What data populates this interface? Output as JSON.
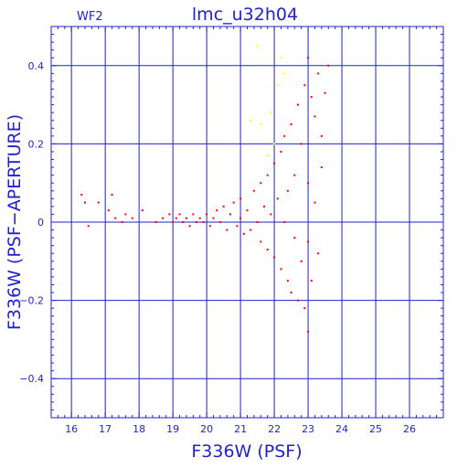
{
  "chart_data": {
    "type": "scatter",
    "title": "lmc_u32h04",
    "chip": "WF2",
    "xlabel": "F336W (PSF)",
    "ylabel": "F336W (PSF−APERTURE)",
    "xlim": [
      15.4,
      27.0
    ],
    "ylim": [
      -0.5,
      0.5
    ],
    "x_major_ticks": [
      16,
      17,
      18,
      19,
      20,
      21,
      22,
      23,
      24,
      25,
      26
    ],
    "x_tick_labels": [
      "16",
      "17",
      "18",
      "19",
      "20",
      "21",
      "22",
      "23",
      "24",
      "25",
      "26"
    ],
    "y_major_ticks": [
      -0.4,
      -0.2,
      0,
      0.2,
      0.4
    ],
    "y_tick_labels": [
      "−0.4",
      "−0.2",
      "0",
      "0.2",
      "0.4"
    ],
    "grid": true,
    "frame_color": "#2222cc",
    "series": [
      {
        "color": "#ff0000",
        "description": "approximate representative sample of the dense cloud",
        "points": [
          [
            16.3,
            0.07
          ],
          [
            16.4,
            0.05
          ],
          [
            16.5,
            -0.01
          ],
          [
            16.8,
            0.05
          ],
          [
            17.1,
            0.03
          ],
          [
            17.2,
            0.07
          ],
          [
            17.3,
            0.01
          ],
          [
            17.5,
            0.0
          ],
          [
            17.6,
            0.02
          ],
          [
            17.8,
            0.01
          ],
          [
            18.1,
            0.03
          ],
          [
            18.5,
            0.0
          ],
          [
            18.7,
            0.01
          ],
          [
            18.9,
            0.02
          ],
          [
            19.0,
            0.0
          ],
          [
            19.1,
            0.01
          ],
          [
            19.2,
            0.02
          ],
          [
            19.3,
            0.0
          ],
          [
            19.4,
            0.01
          ],
          [
            19.5,
            -0.01
          ],
          [
            19.6,
            0.02
          ],
          [
            19.7,
            0.0
          ],
          [
            19.8,
            0.01
          ],
          [
            19.9,
            0.0
          ],
          [
            20.0,
            0.02
          ],
          [
            20.1,
            -0.01
          ],
          [
            20.2,
            0.01
          ],
          [
            20.3,
            0.03
          ],
          [
            20.4,
            0.0
          ],
          [
            20.5,
            0.04
          ],
          [
            20.6,
            -0.02
          ],
          [
            20.7,
            0.02
          ],
          [
            20.8,
            0.05
          ],
          [
            20.9,
            -0.01
          ],
          [
            21.0,
            0.01
          ],
          [
            21.0,
            0.06
          ],
          [
            21.1,
            -0.03
          ],
          [
            21.2,
            0.03
          ],
          [
            21.3,
            -0.02
          ],
          [
            21.4,
            0.08
          ],
          [
            21.5,
            0.0
          ],
          [
            21.6,
            0.1
          ],
          [
            21.6,
            -0.05
          ],
          [
            21.7,
            0.04
          ],
          [
            21.8,
            -0.07
          ],
          [
            21.8,
            0.12
          ],
          [
            21.9,
            0.02
          ],
          [
            22.0,
            -0.09
          ],
          [
            22.0,
            0.15
          ],
          [
            22.1,
            0.06
          ],
          [
            22.2,
            -0.12
          ],
          [
            22.2,
            0.18
          ],
          [
            22.3,
            0.0
          ],
          [
            22.3,
            0.22
          ],
          [
            22.4,
            -0.15
          ],
          [
            22.4,
            0.08
          ],
          [
            22.5,
            0.25
          ],
          [
            22.5,
            -0.18
          ],
          [
            22.6,
            0.12
          ],
          [
            22.6,
            -0.04
          ],
          [
            22.7,
            0.3
          ],
          [
            22.7,
            -0.2
          ],
          [
            22.8,
            0.2
          ],
          [
            22.8,
            -0.1
          ],
          [
            22.9,
            0.35
          ],
          [
            22.9,
            -0.22
          ],
          [
            23.0,
            0.42
          ],
          [
            23.0,
            -0.28
          ],
          [
            23.0,
            0.1
          ],
          [
            23.0,
            -0.05
          ],
          [
            23.1,
            0.32
          ],
          [
            23.1,
            -0.15
          ],
          [
            23.2,
            0.27
          ],
          [
            23.2,
            0.05
          ],
          [
            23.3,
            0.38
          ],
          [
            23.3,
            -0.08
          ],
          [
            23.4,
            0.22
          ],
          [
            23.4,
            0.14
          ],
          [
            23.5,
            0.33
          ],
          [
            23.6,
            0.4
          ]
        ]
      },
      {
        "color": "#ffff00",
        "description": "faint points",
        "points": [
          [
            21.3,
            0.26
          ],
          [
            21.6,
            0.25
          ],
          [
            21.9,
            0.28
          ],
          [
            22.1,
            0.35
          ],
          [
            22.2,
            0.42
          ],
          [
            22.3,
            0.38
          ],
          [
            21.5,
            0.45
          ],
          [
            22.0,
            0.2
          ],
          [
            21.8,
            0.17
          ]
        ]
      }
    ]
  }
}
